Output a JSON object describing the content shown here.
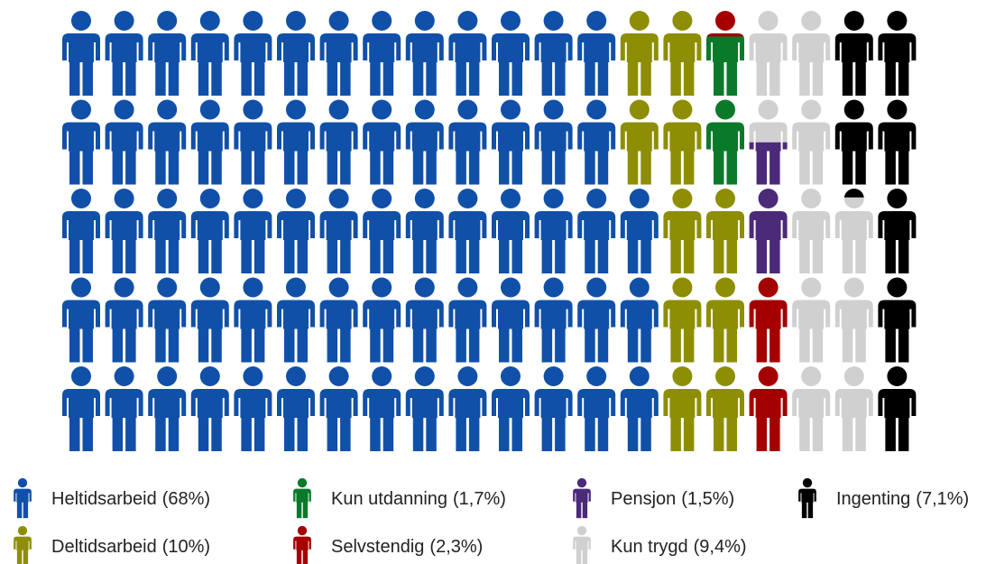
{
  "chart_data": {
    "type": "pictogram",
    "rows": 5,
    "columns": 20,
    "series": [
      {
        "name": "Heltidsarbeid",
        "color": "#1150a8",
        "values": [
          68
        ],
        "value_labels": [
          "(68%)"
        ]
      },
      {
        "name": "Deltidsarbeid",
        "color": "#8e8e04",
        "values": [
          10
        ],
        "value_labels": [
          "(10%)"
        ]
      },
      {
        "name": "Kun utdanning",
        "color": "#0a7a2a",
        "values": [
          1.7
        ],
        "value_labels": [
          "(1,7%)"
        ]
      },
      {
        "name": "Selvstendig",
        "color": "#a50000",
        "values": [
          2.3
        ],
        "value_labels": [
          "(2,3%)"
        ]
      },
      {
        "name": "Pensjon",
        "color": "#4b2a7a",
        "values": [
          1.5
        ],
        "value_labels": [
          "(1,5%)"
        ]
      },
      {
        "name": "Kun trygd",
        "color": "#d0d0d0",
        "values": [
          9.4
        ],
        "value_labels": [
          "(9,4%)"
        ]
      },
      {
        "name": "Ingenting",
        "color": "#000000",
        "values": [
          7.1
        ],
        "value_labels": [
          "(7,1%)"
        ]
      }
    ]
  }
}
